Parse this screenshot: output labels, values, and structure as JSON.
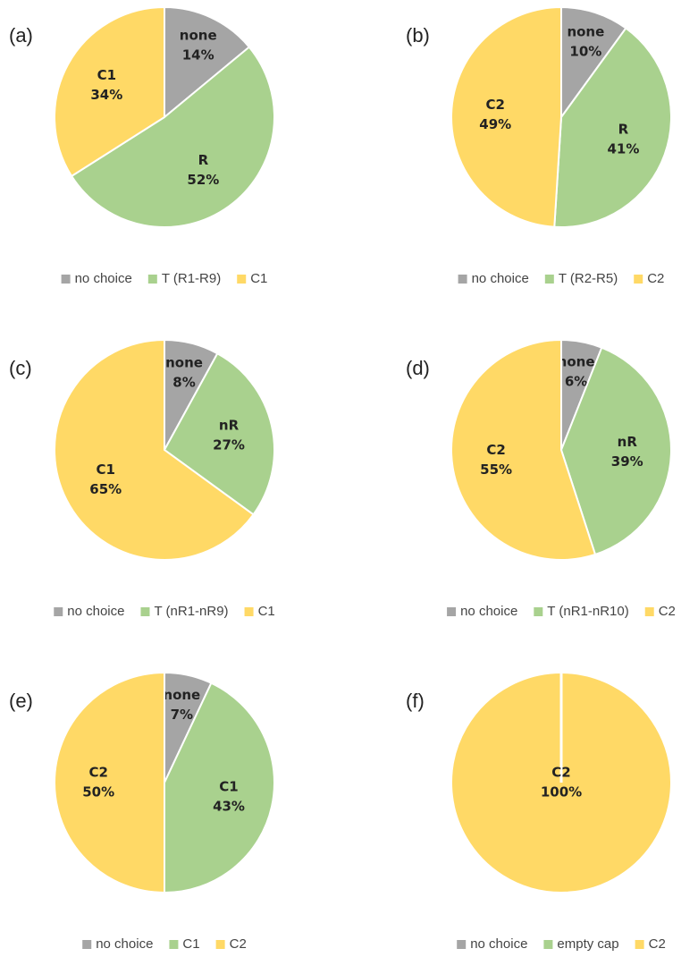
{
  "chart_data": [
    {
      "type": "pie",
      "panel_label": "(a)",
      "categories": [
        "no choice",
        "T (R1-R9)",
        "C1"
      ],
      "slice_labels": [
        "none",
        "R",
        "C1"
      ],
      "values": [
        14,
        52,
        34
      ],
      "value_labels": [
        "14%",
        "52%",
        "34%"
      ],
      "colors": [
        "#a5a5a5",
        "#a9d18e",
        "#ffd966"
      ]
    },
    {
      "type": "pie",
      "panel_label": "(b)",
      "categories": [
        "no choice",
        "T (R2-R5)",
        "C2"
      ],
      "slice_labels": [
        "none",
        "R",
        "C2"
      ],
      "values": [
        10,
        41,
        49
      ],
      "value_labels": [
        "10%",
        "41%",
        "49%"
      ],
      "colors": [
        "#a5a5a5",
        "#a9d18e",
        "#ffd966"
      ]
    },
    {
      "type": "pie",
      "panel_label": "(c)",
      "categories": [
        "no choice",
        "T (nR1-nR9)",
        "C1"
      ],
      "slice_labels": [
        "none",
        "nR",
        "C1"
      ],
      "values": [
        8,
        27,
        65
      ],
      "value_labels": [
        "8%",
        "27%",
        "65%"
      ],
      "colors": [
        "#a5a5a5",
        "#a9d18e",
        "#ffd966"
      ]
    },
    {
      "type": "pie",
      "panel_label": "(d)",
      "categories": [
        "no choice",
        "T (nR1-nR10)",
        "C2"
      ],
      "slice_labels": [
        "none",
        "nR",
        "C2"
      ],
      "values": [
        6,
        39,
        55
      ],
      "value_labels": [
        "6%",
        "39%",
        "55%"
      ],
      "colors": [
        "#a5a5a5",
        "#a9d18e",
        "#ffd966"
      ]
    },
    {
      "type": "pie",
      "panel_label": "(e)",
      "categories": [
        "no choice",
        "C1",
        "C2"
      ],
      "slice_labels": [
        "none",
        "C1",
        "C2"
      ],
      "values": [
        7,
        43,
        50
      ],
      "value_labels": [
        "7%",
        "43%",
        "50%"
      ],
      "colors": [
        "#a5a5a5",
        "#a9d18e",
        "#ffd966"
      ]
    },
    {
      "type": "pie",
      "panel_label": "(f)",
      "categories": [
        "no choice",
        "empty cap",
        "C2"
      ],
      "slice_labels": [
        null,
        null,
        "C2"
      ],
      "values": [
        0,
        0,
        100
      ],
      "value_labels": [
        null,
        null,
        "100%"
      ],
      "colors": [
        "#a5a5a5",
        "#a9d18e",
        "#ffd966"
      ]
    }
  ]
}
